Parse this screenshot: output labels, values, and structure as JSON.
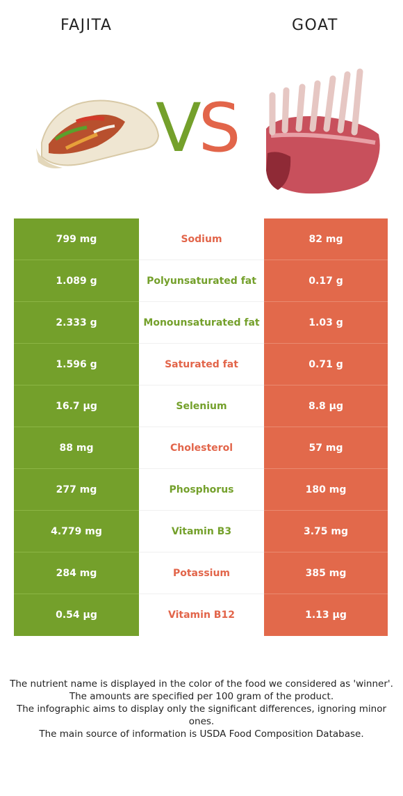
{
  "header": {
    "left_food": "FAJITA",
    "right_food": "GOAT"
  },
  "vs": {
    "v": "V",
    "s": "S"
  },
  "colors": {
    "left": "#74a02b",
    "right": "#e2694b"
  },
  "rows": [
    {
      "left": "799 mg",
      "nutrient": "Sodium",
      "right": "82 mg",
      "winner": "right"
    },
    {
      "left": "1.089 g",
      "nutrient": "Polyunsaturated fat",
      "right": "0.17 g",
      "winner": "left"
    },
    {
      "left": "2.333 g",
      "nutrient": "Monounsaturated fat",
      "right": "1.03 g",
      "winner": "left"
    },
    {
      "left": "1.596 g",
      "nutrient": "Saturated fat",
      "right": "0.71 g",
      "winner": "right"
    },
    {
      "left": "16.7 µg",
      "nutrient": "Selenium",
      "right": "8.8 µg",
      "winner": "left"
    },
    {
      "left": "88 mg",
      "nutrient": "Cholesterol",
      "right": "57 mg",
      "winner": "right"
    },
    {
      "left": "277 mg",
      "nutrient": "Phosphorus",
      "right": "180 mg",
      "winner": "left"
    },
    {
      "left": "4.779 mg",
      "nutrient": "Vitamin B3",
      "right": "3.75 mg",
      "winner": "left"
    },
    {
      "left": "284 mg",
      "nutrient": "Potassium",
      "right": "385 mg",
      "winner": "right"
    },
    {
      "left": "0.54 µg",
      "nutrient": "Vitamin B12",
      "right": "1.13 µg",
      "winner": "right"
    }
  ],
  "footer": {
    "line1": "The nutrient name is displayed in the color of the food we considered as 'winner'.",
    "line2": "The amounts are specified per 100 gram of the product.",
    "line3": "The infographic aims to display only the significant differences, ignoring minor ones.",
    "line4": "The main source of information is USDA Food Composition Database."
  }
}
